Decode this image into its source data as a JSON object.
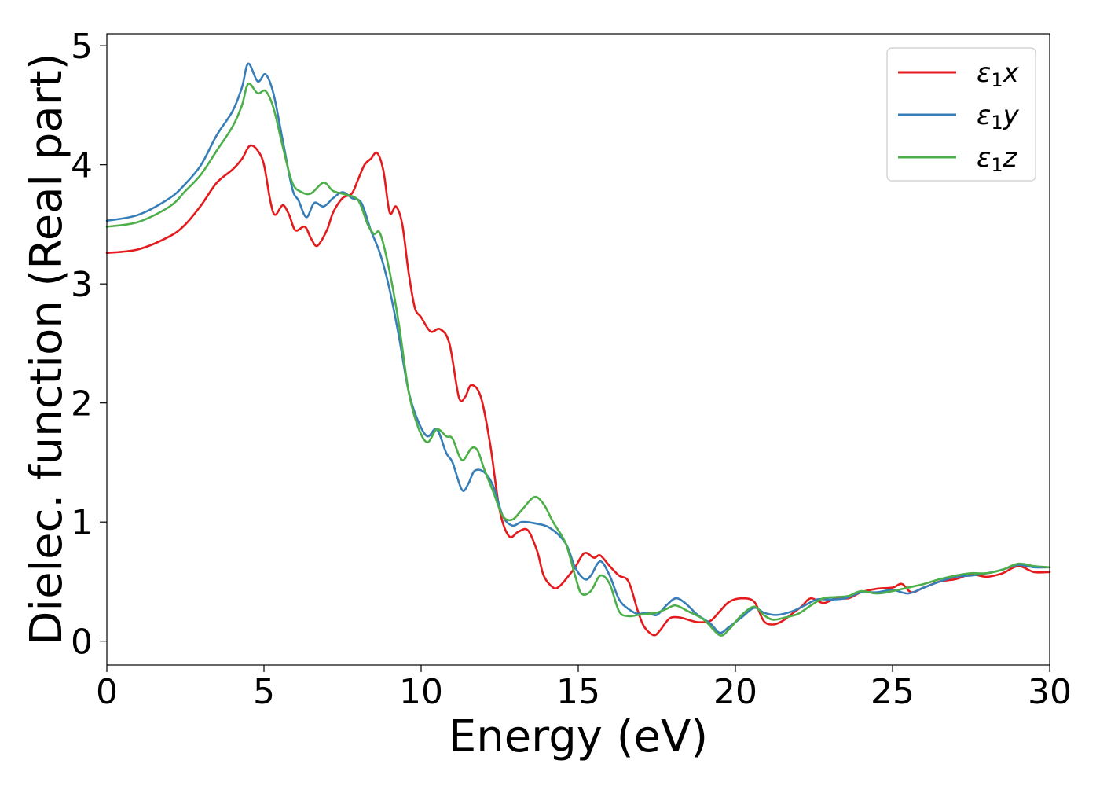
{
  "chart_data": {
    "type": "line",
    "title": "",
    "xlabel": "Energy (eV)",
    "ylabel": "Dielec. function (Real part)",
    "xlim": [
      0,
      30
    ],
    "ylim": [
      -0.2,
      5.1
    ],
    "xticks": [
      0,
      5,
      10,
      15,
      20,
      25,
      30
    ],
    "xtick_labels": [
      "0",
      "5",
      "10",
      "15",
      "20",
      "25",
      "30"
    ],
    "yticks": [
      0,
      1,
      2,
      3,
      4,
      5
    ],
    "ytick_labels": [
      "0",
      "1",
      "2",
      "3",
      "4",
      "5"
    ],
    "grid": false,
    "legend_position": "top-right",
    "series": [
      {
        "name": "ε1x",
        "legend_base": "ε",
        "legend_sub": "1",
        "legend_tail": "x",
        "color": "#e41a1c",
        "points": [
          [
            0,
            3.26
          ],
          [
            1,
            3.29
          ],
          [
            2,
            3.4
          ],
          [
            2.5,
            3.5
          ],
          [
            3,
            3.66
          ],
          [
            3.5,
            3.85
          ],
          [
            4,
            3.96
          ],
          [
            4.3,
            4.05
          ],
          [
            4.55,
            4.16
          ],
          [
            4.8,
            4.12
          ],
          [
            5,
            4.0
          ],
          [
            5.2,
            3.7
          ],
          [
            5.35,
            3.58
          ],
          [
            5.6,
            3.66
          ],
          [
            5.8,
            3.58
          ],
          [
            6,
            3.45
          ],
          [
            6.3,
            3.48
          ],
          [
            6.5,
            3.38
          ],
          [
            6.7,
            3.32
          ],
          [
            7,
            3.45
          ],
          [
            7.2,
            3.6
          ],
          [
            7.5,
            3.72
          ],
          [
            7.8,
            3.76
          ],
          [
            8,
            3.88
          ],
          [
            8.2,
            4.0
          ],
          [
            8.4,
            4.05
          ],
          [
            8.6,
            4.1
          ],
          [
            8.8,
            3.95
          ],
          [
            9,
            3.6
          ],
          [
            9.2,
            3.65
          ],
          [
            9.4,
            3.5
          ],
          [
            9.6,
            3.1
          ],
          [
            9.8,
            2.8
          ],
          [
            10,
            2.72
          ],
          [
            10.3,
            2.6
          ],
          [
            10.6,
            2.62
          ],
          [
            10.9,
            2.5
          ],
          [
            11.2,
            2.05
          ],
          [
            11.4,
            2.05
          ],
          [
            11.6,
            2.15
          ],
          [
            11.9,
            2.05
          ],
          [
            12.2,
            1.65
          ],
          [
            12.5,
            1.1
          ],
          [
            12.8,
            0.88
          ],
          [
            13.1,
            0.92
          ],
          [
            13.4,
            0.93
          ],
          [
            13.7,
            0.75
          ],
          [
            13.9,
            0.55
          ],
          [
            14.2,
            0.45
          ],
          [
            14.4,
            0.46
          ],
          [
            14.7,
            0.55
          ],
          [
            14.9,
            0.62
          ],
          [
            15.2,
            0.74
          ],
          [
            15.5,
            0.7
          ],
          [
            15.7,
            0.72
          ],
          [
            16,
            0.63
          ],
          [
            16.3,
            0.55
          ],
          [
            16.6,
            0.5
          ],
          [
            16.9,
            0.25
          ],
          [
            17.1,
            0.12
          ],
          [
            17.4,
            0.05
          ],
          [
            17.6,
            0.09
          ],
          [
            17.9,
            0.19
          ],
          [
            18.2,
            0.2
          ],
          [
            18.5,
            0.18
          ],
          [
            18.8,
            0.16
          ],
          [
            19.2,
            0.17
          ],
          [
            19.5,
            0.25
          ],
          [
            19.8,
            0.33
          ],
          [
            20.2,
            0.36
          ],
          [
            20.6,
            0.33
          ],
          [
            20.9,
            0.17
          ],
          [
            21.2,
            0.14
          ],
          [
            21.5,
            0.17
          ],
          [
            21.8,
            0.23
          ],
          [
            22.1,
            0.29
          ],
          [
            22.4,
            0.36
          ],
          [
            22.8,
            0.32
          ],
          [
            23.2,
            0.36
          ],
          [
            23.6,
            0.36
          ],
          [
            24,
            0.41
          ],
          [
            24.5,
            0.44
          ],
          [
            25,
            0.45
          ],
          [
            25.3,
            0.48
          ],
          [
            25.6,
            0.41
          ],
          [
            26,
            0.45
          ],
          [
            26.5,
            0.5
          ],
          [
            27,
            0.52
          ],
          [
            27.5,
            0.56
          ],
          [
            28,
            0.54
          ],
          [
            28.5,
            0.57
          ],
          [
            29,
            0.63
          ],
          [
            29.5,
            0.58
          ],
          [
            30,
            0.58
          ]
        ]
      },
      {
        "name": "ε1y",
        "legend_base": "ε",
        "legend_sub": "1",
        "legend_tail": "y",
        "color": "#377eb8",
        "points": [
          [
            0,
            3.53
          ],
          [
            1,
            3.58
          ],
          [
            2,
            3.72
          ],
          [
            2.5,
            3.84
          ],
          [
            3,
            4.0
          ],
          [
            3.5,
            4.25
          ],
          [
            4,
            4.45
          ],
          [
            4.3,
            4.65
          ],
          [
            4.5,
            4.85
          ],
          [
            4.8,
            4.7
          ],
          [
            5.05,
            4.76
          ],
          [
            5.3,
            4.6
          ],
          [
            5.6,
            4.2
          ],
          [
            5.9,
            3.8
          ],
          [
            6.1,
            3.7
          ],
          [
            6.35,
            3.56
          ],
          [
            6.6,
            3.68
          ],
          [
            6.9,
            3.65
          ],
          [
            7.2,
            3.72
          ],
          [
            7.5,
            3.77
          ],
          [
            7.8,
            3.72
          ],
          [
            8.1,
            3.68
          ],
          [
            8.4,
            3.45
          ],
          [
            8.7,
            3.25
          ],
          [
            9,
            2.95
          ],
          [
            9.3,
            2.55
          ],
          [
            9.6,
            2.1
          ],
          [
            9.9,
            1.85
          ],
          [
            10.2,
            1.72
          ],
          [
            10.5,
            1.78
          ],
          [
            10.8,
            1.58
          ],
          [
            11,
            1.5
          ],
          [
            11.3,
            1.27
          ],
          [
            11.5,
            1.32
          ],
          [
            11.7,
            1.43
          ],
          [
            12,
            1.42
          ],
          [
            12.3,
            1.3
          ],
          [
            12.6,
            1.05
          ],
          [
            12.9,
            0.97
          ],
          [
            13.2,
            1.0
          ],
          [
            13.6,
            0.99
          ],
          [
            14.1,
            0.95
          ],
          [
            14.6,
            0.82
          ],
          [
            14.9,
            0.62
          ],
          [
            15.2,
            0.52
          ],
          [
            15.4,
            0.55
          ],
          [
            15.7,
            0.67
          ],
          [
            16,
            0.55
          ],
          [
            16.3,
            0.35
          ],
          [
            16.6,
            0.27
          ],
          [
            16.9,
            0.23
          ],
          [
            17.2,
            0.24
          ],
          [
            17.5,
            0.22
          ],
          [
            17.8,
            0.3
          ],
          [
            18.1,
            0.36
          ],
          [
            18.4,
            0.32
          ],
          [
            18.8,
            0.22
          ],
          [
            19.2,
            0.15
          ],
          [
            19.5,
            0.07
          ],
          [
            19.8,
            0.12
          ],
          [
            20.2,
            0.2
          ],
          [
            20.6,
            0.28
          ],
          [
            20.9,
            0.24
          ],
          [
            21.3,
            0.22
          ],
          [
            21.8,
            0.25
          ],
          [
            22.2,
            0.3
          ],
          [
            22.6,
            0.35
          ],
          [
            23,
            0.35
          ],
          [
            23.5,
            0.36
          ],
          [
            24,
            0.41
          ],
          [
            24.5,
            0.41
          ],
          [
            25,
            0.43
          ],
          [
            25.5,
            0.4
          ],
          [
            26,
            0.45
          ],
          [
            26.5,
            0.5
          ],
          [
            27,
            0.54
          ],
          [
            27.5,
            0.55
          ],
          [
            28,
            0.57
          ],
          [
            28.5,
            0.6
          ],
          [
            29,
            0.64
          ],
          [
            29.5,
            0.62
          ],
          [
            30,
            0.62
          ]
        ]
      },
      {
        "name": "ε1z",
        "legend_base": "ε",
        "legend_sub": "1",
        "legend_tail": "z",
        "color": "#4daf4a",
        "points": [
          [
            0,
            3.48
          ],
          [
            1,
            3.52
          ],
          [
            2,
            3.65
          ],
          [
            2.5,
            3.78
          ],
          [
            3,
            3.92
          ],
          [
            3.5,
            4.12
          ],
          [
            4,
            4.32
          ],
          [
            4.3,
            4.5
          ],
          [
            4.5,
            4.68
          ],
          [
            4.8,
            4.6
          ],
          [
            5.05,
            4.62
          ],
          [
            5.3,
            4.48
          ],
          [
            5.6,
            4.15
          ],
          [
            5.9,
            3.85
          ],
          [
            6.2,
            3.77
          ],
          [
            6.5,
            3.76
          ],
          [
            6.9,
            3.85
          ],
          [
            7.2,
            3.78
          ],
          [
            7.6,
            3.75
          ],
          [
            8,
            3.7
          ],
          [
            8.3,
            3.5
          ],
          [
            8.5,
            3.42
          ],
          [
            8.7,
            3.42
          ],
          [
            9,
            3.1
          ],
          [
            9.3,
            2.65
          ],
          [
            9.6,
            2.1
          ],
          [
            9.9,
            1.8
          ],
          [
            10.2,
            1.67
          ],
          [
            10.5,
            1.78
          ],
          [
            10.8,
            1.72
          ],
          [
            11,
            1.7
          ],
          [
            11.3,
            1.52
          ],
          [
            11.6,
            1.62
          ],
          [
            11.8,
            1.6
          ],
          [
            12,
            1.45
          ],
          [
            12.3,
            1.25
          ],
          [
            12.6,
            1.05
          ],
          [
            12.9,
            1.02
          ],
          [
            13.2,
            1.1
          ],
          [
            13.6,
            1.21
          ],
          [
            13.9,
            1.15
          ],
          [
            14.2,
            1.0
          ],
          [
            14.6,
            0.82
          ],
          [
            14.9,
            0.55
          ],
          [
            15.1,
            0.4
          ],
          [
            15.4,
            0.42
          ],
          [
            15.7,
            0.55
          ],
          [
            16,
            0.48
          ],
          [
            16.3,
            0.25
          ],
          [
            16.6,
            0.21
          ],
          [
            16.9,
            0.22
          ],
          [
            17.2,
            0.23
          ],
          [
            17.5,
            0.24
          ],
          [
            17.8,
            0.27
          ],
          [
            18.1,
            0.3
          ],
          [
            18.5,
            0.25
          ],
          [
            19,
            0.18
          ],
          [
            19.5,
            0.05
          ],
          [
            19.8,
            0.1
          ],
          [
            20.2,
            0.22
          ],
          [
            20.6,
            0.29
          ],
          [
            20.9,
            0.22
          ],
          [
            21.2,
            0.18
          ],
          [
            21.6,
            0.2
          ],
          [
            22,
            0.23
          ],
          [
            22.4,
            0.3
          ],
          [
            22.8,
            0.36
          ],
          [
            23.2,
            0.37
          ],
          [
            23.6,
            0.38
          ],
          [
            24,
            0.42
          ],
          [
            24.5,
            0.4
          ],
          [
            25,
            0.42
          ],
          [
            25.5,
            0.45
          ],
          [
            26,
            0.48
          ],
          [
            26.5,
            0.52
          ],
          [
            27,
            0.55
          ],
          [
            27.5,
            0.57
          ],
          [
            28,
            0.57
          ],
          [
            28.5,
            0.6
          ],
          [
            29,
            0.65
          ],
          [
            29.5,
            0.63
          ],
          [
            30,
            0.62
          ]
        ]
      }
    ]
  }
}
